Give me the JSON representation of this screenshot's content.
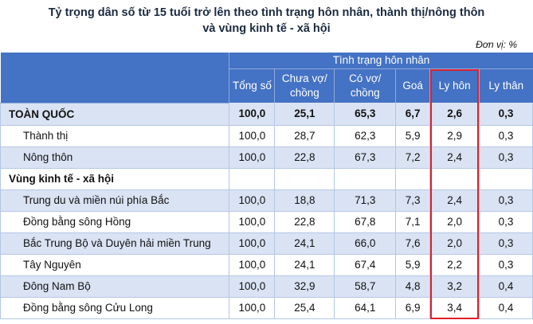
{
  "title_line1": "Tỷ trọng dân số từ 15 tuổi trở lên theo tình trạng hôn nhân, thành thị/nông thôn",
  "title_line2": "và vùng kinh tế - xã hội",
  "unit": "Đơn vị: %",
  "header": {
    "group": "Tình trạng hôn nhân",
    "columns": [
      "Tổng số",
      "Chưa vợ/ chồng",
      "Có vợ/ chồng",
      "Goá",
      "Ly hôn",
      "Ly thân"
    ]
  },
  "highlight_color": "#e0202a",
  "header_color": "#4472c4",
  "rows": [
    {
      "label": "TOÀN QUỐC",
      "values": [
        "100,0",
        "25,1",
        "65,3",
        "6,7",
        "2,6",
        "0,3"
      ]
    },
    {
      "label": "Thành thị",
      "values": [
        "100,0",
        "28,7",
        "62,3",
        "5,9",
        "2,9",
        "0,3"
      ]
    },
    {
      "label": "Nông thôn",
      "values": [
        "100,0",
        "22,8",
        "67,3",
        "7,2",
        "2,4",
        "0,3"
      ]
    },
    {
      "label": "Vùng kinh tế - xã hội"
    },
    {
      "label": "Trung du và miền núi phía Bắc",
      "values": [
        "100,0",
        "18,8",
        "71,3",
        "7,3",
        "2,4",
        "0,3"
      ]
    },
    {
      "label": "Đồng bằng sông Hồng",
      "values": [
        "100,0",
        "22,8",
        "67,8",
        "7,1",
        "2,0",
        "0,3"
      ]
    },
    {
      "label": "Bắc Trung Bộ và Duyên hải miền Trung",
      "values": [
        "100,0",
        "24,1",
        "66,0",
        "7,6",
        "2,0",
        "0,3"
      ]
    },
    {
      "label": "Tây Nguyên",
      "values": [
        "100,0",
        "24,1",
        "67,4",
        "5,9",
        "2,2",
        "0,3"
      ]
    },
    {
      "label": "Đông Nam Bộ",
      "values": [
        "100,0",
        "32,9",
        "58,7",
        "4,8",
        "3,2",
        "0,4"
      ]
    },
    {
      "label": "Đồng bằng sông Cửu Long",
      "values": [
        "100,0",
        "25,4",
        "64,1",
        "6,9",
        "3,4",
        "0,4"
      ]
    }
  ]
}
